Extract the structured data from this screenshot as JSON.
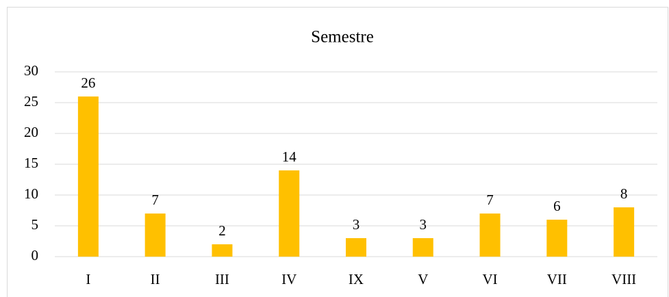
{
  "chart_data": {
    "type": "bar",
    "title": "Semestre",
    "categories": [
      "I",
      "II",
      "III",
      "IV",
      "IX",
      "V",
      "VI",
      "VII",
      "VIII"
    ],
    "values": [
      26,
      7,
      2,
      14,
      3,
      3,
      7,
      6,
      8
    ],
    "color": "#ffc000",
    "ylim": [
      0,
      30
    ],
    "yticks": [
      0,
      5,
      10,
      15,
      20,
      25,
      30
    ],
    "grid": true
  }
}
